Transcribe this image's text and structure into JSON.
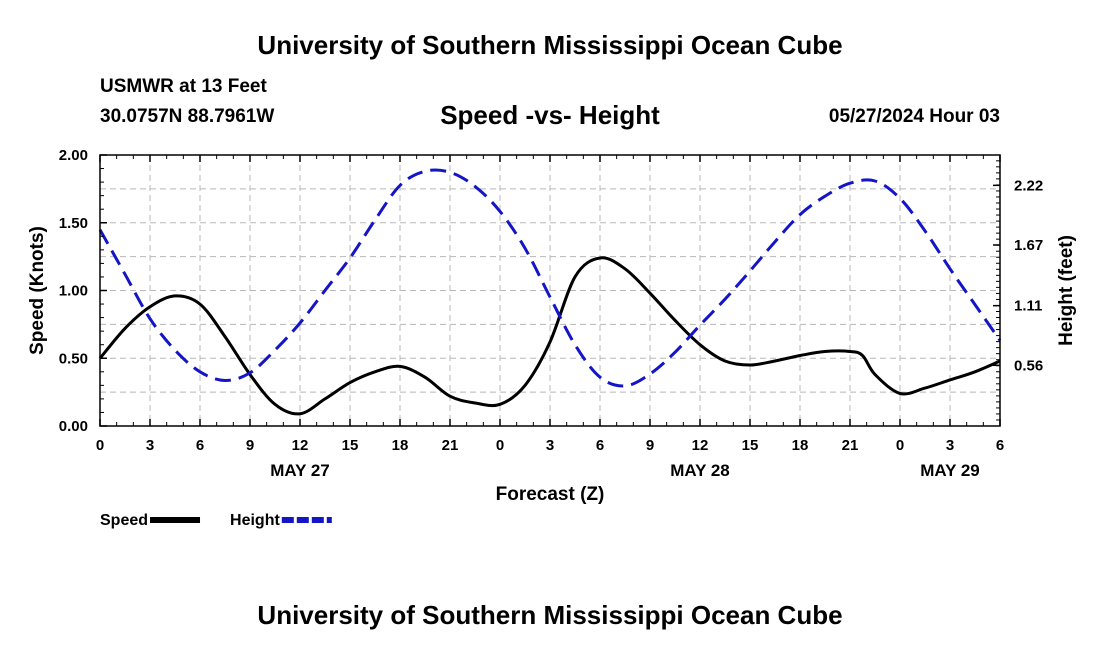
{
  "header": {
    "title": "University of Southern Mississippi Ocean Cube",
    "station": "USMWR at 13 Feet",
    "coords": "30.0757N  88.7961W",
    "subtitle": "Speed -vs- Height",
    "datetime": "05/27/2024 Hour 03"
  },
  "footer": {
    "title": "University of Southern Mississippi Ocean Cube"
  },
  "chart_data": {
    "type": "line",
    "title": "Speed -vs- Height",
    "xlabel": "Forecast (Z)",
    "ylabel": "Speed (Knots)",
    "y2label": "Height (feet)",
    "xlim": [
      0,
      54
    ],
    "ylim": [
      0,
      2.0
    ],
    "y2lim": [
      0,
      2.5
    ],
    "x_ticks": [
      0,
      3,
      6,
      9,
      12,
      15,
      18,
      21,
      24,
      27,
      30,
      33,
      36,
      39,
      42,
      45,
      48,
      51,
      54
    ],
    "x_tick_labels": [
      "0",
      "3",
      "6",
      "9",
      "12",
      "15",
      "18",
      "21",
      "0",
      "3",
      "6",
      "9",
      "12",
      "15",
      "18",
      "21",
      "0",
      "3",
      "6"
    ],
    "date_labels": [
      {
        "x": 12,
        "label": "MAY 27"
      },
      {
        "x": 36,
        "label": "MAY 28"
      },
      {
        "x": 51,
        "label": "MAY 29"
      }
    ],
    "y_ticks": [
      0,
      0.5,
      1.0,
      1.5,
      2.0
    ],
    "y_tick_labels": [
      "0.00",
      "0.50",
      "1.00",
      "1.50",
      "2.00"
    ],
    "y2_ticks": [
      0.56,
      1.11,
      1.67,
      2.22
    ],
    "y2_tick_labels": [
      "0.56",
      "1.11",
      "1.67",
      "2.22"
    ],
    "grid": true,
    "legend_position": "bottom-left",
    "series": [
      {
        "name": "Speed",
        "axis": "left",
        "color": "#000000",
        "style": "solid",
        "x": [
          0,
          1.5,
          3,
          4.5,
          6,
          7.5,
          9,
          10.5,
          12,
          13.5,
          15,
          16.5,
          18,
          19.5,
          21,
          22.5,
          24,
          25.5,
          27,
          28.5,
          30,
          31.5,
          33,
          34.5,
          36,
          37.5,
          39,
          40.5,
          42,
          43.5,
          45,
          45.75,
          46.5,
          48,
          49.5,
          51,
          52.5,
          54
        ],
        "values": [
          0.5,
          0.72,
          0.88,
          0.96,
          0.9,
          0.66,
          0.38,
          0.16,
          0.09,
          0.2,
          0.32,
          0.4,
          0.44,
          0.36,
          0.22,
          0.17,
          0.16,
          0.3,
          0.62,
          1.1,
          1.24,
          1.16,
          0.98,
          0.78,
          0.6,
          0.48,
          0.45,
          0.48,
          0.52,
          0.55,
          0.55,
          0.52,
          0.38,
          0.24,
          0.28,
          0.34,
          0.4,
          0.48
        ]
      },
      {
        "name": "Height",
        "axis": "right",
        "color": "#1515c8",
        "style": "dashed",
        "x": [
          0,
          1.5,
          3,
          4.5,
          6,
          7.5,
          9,
          10.5,
          12,
          13.5,
          15,
          16.5,
          18,
          19.5,
          21,
          22.5,
          24,
          25.5,
          27,
          28.5,
          30,
          31.5,
          33,
          34.5,
          36,
          37.5,
          39,
          40.5,
          42,
          43.5,
          45,
          46.5,
          48,
          49.5,
          51,
          52.5,
          54
        ],
        "values": [
          1.81,
          1.4,
          0.99,
          0.7,
          0.5,
          0.42,
          0.49,
          0.7,
          0.95,
          1.25,
          1.55,
          1.9,
          2.22,
          2.35,
          2.34,
          2.21,
          1.98,
          1.64,
          1.19,
          0.75,
          0.45,
          0.37,
          0.48,
          0.68,
          0.93,
          1.17,
          1.43,
          1.7,
          1.95,
          2.12,
          2.24,
          2.26,
          2.1,
          1.8,
          1.45,
          1.12,
          0.79
        ]
      }
    ]
  }
}
